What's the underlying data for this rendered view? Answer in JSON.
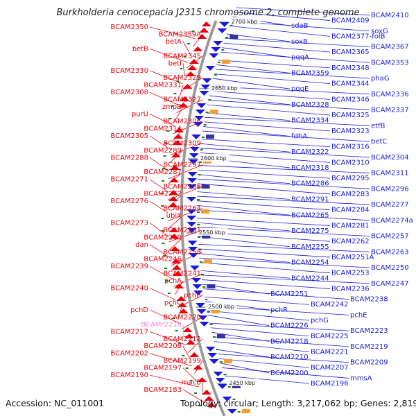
{
  "header": {
    "title": "Burkholderia cenocepacia J2315 chromosome 2, complete genome"
  },
  "footer": {
    "accession": "Accession: NC_011001",
    "summary": "Topology: circular; Length: 3,217,062 bp; Genes: 2,819"
  },
  "colors": {
    "forward": "#e8000b",
    "reverse": "#1a1adc",
    "rna": "#f08cd2",
    "backbone": "#9a9a9a",
    "ticks": "#1e7a1e"
  },
  "kbp_marks": [
    "2700 kbp",
    "2650 kbp",
    "2600 kbp",
    "2550 kbp",
    "2500 kbp",
    "2450 kbp"
  ],
  "left_labels": [
    "BCAM2350",
    "BCAM2359A",
    "betA",
    "betB",
    "BCAM2345",
    "betI",
    "BCAM2330",
    "BCAM2329",
    "BCAM2331",
    "BCAM2308",
    "BCAM2327",
    "zmpB",
    "purU",
    "BCAM2306",
    "BCAM2314",
    "BCAM2305",
    "BCAM2309",
    "BCAM2289",
    "BCAM2288",
    "BCAM2297",
    "BCAM2287",
    "BCAM2271",
    "BCAM2266",
    "BCAM2272",
    "BCAM2276",
    "BCAM2264",
    "ubiX",
    "BCAM2273",
    "BCAM2261",
    "BCAM2260",
    "dan",
    "BCAM2258",
    "BCAM2246",
    "BCAM2239",
    "BCAM2241",
    "pchA",
    "BCAM2240",
    "pchB",
    "pchC",
    "pchD",
    "BCAM2220",
    "BCAMr2218",
    "BCAM2217",
    "BCAM2212",
    "BCAM2208",
    "BCAM2202",
    "BCAM2199",
    "BCAM2197",
    "BCAM2190",
    "macB",
    "BCAM2183"
  ],
  "right_labels": [
    "BCAM2410",
    "BCAM2409",
    "sdaB",
    "soxG",
    "BCAM2377-folB",
    "soxB",
    "BCAM2367",
    "BCAM2365",
    "pqqA",
    "BCAM2353",
    "BCAM2348",
    "BCAM2359",
    "phaG",
    "BCAM2344",
    "pqqE",
    "BCAM2336",
    "BCAM2346",
    "BCAM2328",
    "BCAM2337",
    "BCAM2325",
    "BCAM2334",
    "etfB",
    "BCAM2323",
    "fdhA",
    "betC",
    "BCAM2316",
    "BCAM2322",
    "BCAM2304",
    "BCAM2310",
    "BCAM2318",
    "BCAM2311",
    "BCAM2295",
    "BCAM2286",
    "BCAM2296",
    "BCAM2283",
    "BCAM2291",
    "BCAM2277",
    "BCAM2284",
    "BCAM2265",
    "BCAM2274a",
    "BCAM2281",
    "BCAM2275",
    "BCAM2257",
    "BCAM2262",
    "BCAM2255",
    "BCAM2263",
    "BCAM2251A",
    "BCAM2254",
    "BCAM2250",
    "BCAM2253",
    "BCAM2244",
    "BCAM2247",
    "BCAM2236",
    "BCAM2251",
    "BCAM2238",
    "BCAM2242",
    "pchR",
    "pchE",
    "pchG",
    "BCAM2226",
    "BCAM2223",
    "BCAM2225",
    "BCAM2218",
    "BCAM2219",
    "BCAM2221",
    "BCAM2210",
    "BCAM2209",
    "BCAM2207",
    "BCAM2200",
    "mmsA",
    "BCAM2196"
  ]
}
